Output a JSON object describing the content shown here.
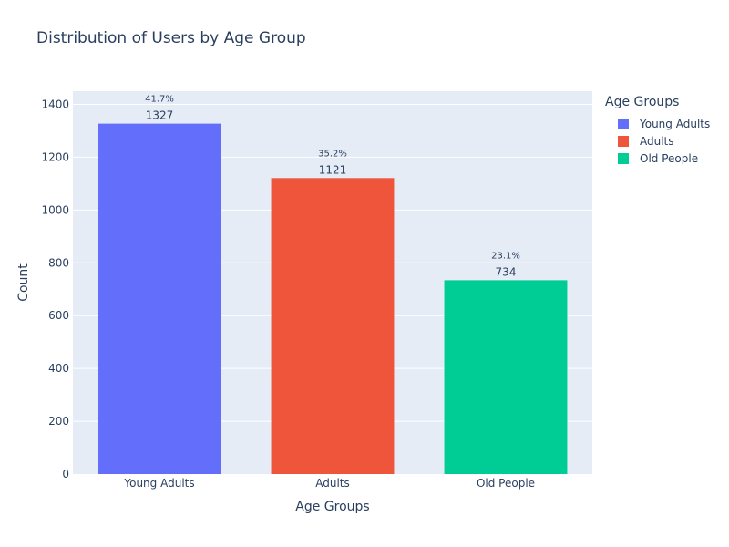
{
  "chart_data": {
    "type": "bar",
    "title": "Distribution of Users by Age Group",
    "xlabel": "Age Groups",
    "ylabel": "Count",
    "categories": [
      "Young Adults",
      "Adults",
      "Old People"
    ],
    "values": [
      1327,
      1121,
      734
    ],
    "percent_labels": [
      "41.7%",
      "35.2%",
      "23.1%"
    ],
    "colors": [
      "#636efa",
      "#ef553b",
      "#00cc96"
    ],
    "ylim": [
      0,
      1450
    ],
    "yticks": [
      0,
      200,
      400,
      600,
      800,
      1000,
      1200,
      1400
    ],
    "grid": true,
    "legend": {
      "title": "Age Groups",
      "placement": "top-right",
      "items": [
        "Young Adults",
        "Adults",
        "Old People"
      ]
    }
  },
  "colors": {
    "plot_background": "#e5ecf6",
    "gridline": "#ffffff",
    "text": "#2a3f5f"
  }
}
